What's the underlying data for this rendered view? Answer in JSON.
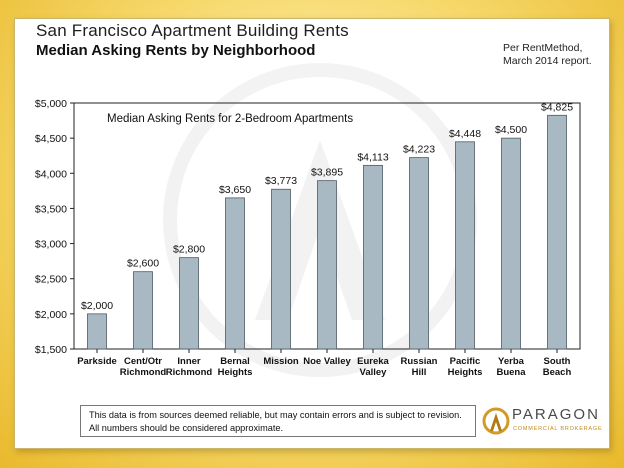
{
  "header": {
    "title_main": "San Francisco Apartment Building Rents",
    "title_sub": "Median Asking Rents by Neighborhood",
    "source_line1": "Per RentMethod,",
    "source_line2": "March 2014 report."
  },
  "footer": {
    "disclaimer_line1": "This data is from sources deemed reliable, but may contain errors and is subject to revision.",
    "disclaimer_line2": "All numbers should be considered approximate."
  },
  "logo": {
    "name": "PARAGON",
    "tagline": "COMMERCIAL BROKERAGE"
  },
  "colors": {
    "bar_fill": "#a8b9c4",
    "bar_stroke": "#4e5a62",
    "axis": "#222222",
    "background_gold": "#f0c84a"
  },
  "chart_data": {
    "type": "bar",
    "title": "Median Asking Rents for 2-Bedroom Apartments",
    "categories": [
      [
        "Parkside"
      ],
      [
        "Cent/Otr",
        "Richmond"
      ],
      [
        "Inner",
        "Richmond"
      ],
      [
        "Bernal",
        "Heights"
      ],
      [
        "Mission"
      ],
      [
        "Noe Valley"
      ],
      [
        "Eureka",
        "Valley"
      ],
      [
        "Russian",
        "Hill"
      ],
      [
        "Pacific",
        "Heights"
      ],
      [
        "Yerba",
        "Buena"
      ],
      [
        "South",
        "Beach"
      ]
    ],
    "values": [
      2000,
      2600,
      2800,
      3650,
      3773,
      3895,
      4113,
      4223,
      4448,
      4500,
      4825
    ],
    "value_labels": [
      "$2,000",
      "$2,600",
      "$2,800",
      "$3,650",
      "$3,773",
      "$3,895",
      "$4,113",
      "$4,223",
      "$4,448",
      "$4,500",
      "$4,825"
    ],
    "ylim": [
      1500,
      5000
    ],
    "yticks": [
      1500,
      2000,
      2500,
      3000,
      3500,
      4000,
      4500,
      5000
    ],
    "ytick_labels": [
      "$1,500",
      "$2,000",
      "$2,500",
      "$3,000",
      "$3,500",
      "$4,000",
      "$4,500",
      "$5,000"
    ],
    "xlabel": "",
    "ylabel": "",
    "grid": false,
    "legend": "none"
  }
}
